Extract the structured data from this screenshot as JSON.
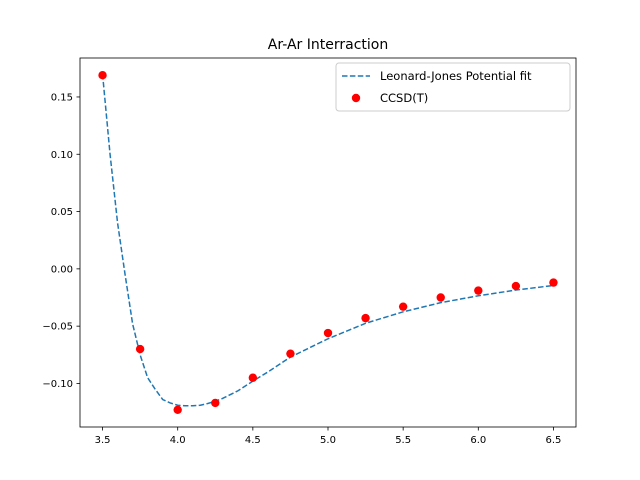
{
  "chart_data": {
    "type": "scatter",
    "title": "Ar-Ar Interraction",
    "xlabel": "",
    "ylabel": "",
    "xlim": [
      3.35,
      6.65
    ],
    "ylim": [
      -0.138,
      0.184
    ],
    "xticks": [
      3.5,
      4.0,
      4.5,
      5.0,
      5.5,
      6.0,
      6.5
    ],
    "xtick_labels": [
      "3.5",
      "4.0",
      "4.5",
      "5.0",
      "5.5",
      "6.0",
      "6.5"
    ],
    "yticks": [
      -0.1,
      -0.05,
      0.0,
      0.05,
      0.1,
      0.15
    ],
    "ytick_labels": [
      "−0.10",
      "−0.05",
      "0.00",
      "0.05",
      "0.10",
      "0.15"
    ],
    "grid": false,
    "legend_position": "top-right",
    "series": [
      {
        "name": "Leonard-Jones Potential fit",
        "kind": "line",
        "style": "dashed",
        "color": "#1f77b4",
        "x": [
          3.5,
          3.55,
          3.6,
          3.65,
          3.7,
          3.75,
          3.8,
          3.85,
          3.9,
          3.95,
          4.0,
          4.05,
          4.1,
          4.15,
          4.2,
          4.25,
          4.3,
          4.4,
          4.5,
          4.6,
          4.75,
          5.0,
          5.25,
          5.5,
          5.75,
          6.0,
          6.25,
          6.5
        ],
        "y": [
          0.17,
          0.1,
          0.04,
          -0.005,
          -0.048,
          -0.075,
          -0.095,
          -0.105,
          -0.114,
          -0.117,
          -0.119,
          -0.1195,
          -0.1195,
          -0.119,
          -0.1175,
          -0.1155,
          -0.113,
          -0.1065,
          -0.098,
          -0.09,
          -0.077,
          -0.061,
          -0.0475,
          -0.0375,
          -0.0295,
          -0.0235,
          -0.0185,
          -0.0145
        ]
      },
      {
        "name": "CCSD(T)",
        "kind": "scatter",
        "color": "#ff0000",
        "x": [
          3.5,
          3.75,
          4.0,
          4.25,
          4.5,
          4.75,
          5.0,
          5.25,
          5.5,
          5.75,
          6.0,
          6.25,
          6.5
        ],
        "y": [
          0.169,
          -0.07,
          -0.123,
          -0.117,
          -0.095,
          -0.074,
          -0.056,
          -0.043,
          -0.033,
          -0.025,
          -0.019,
          -0.015,
          -0.012
        ]
      }
    ]
  }
}
